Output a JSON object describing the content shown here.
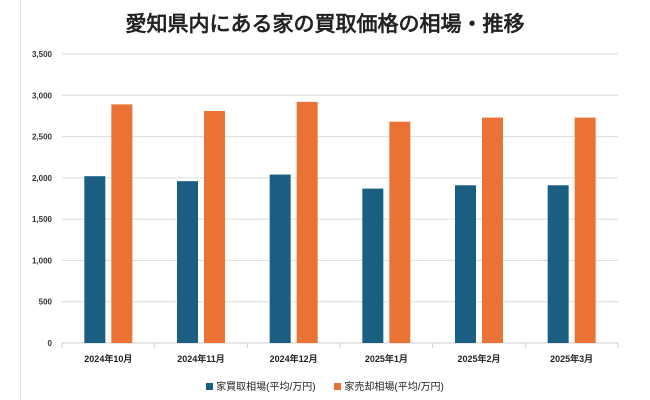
{
  "chart_data": {
    "type": "bar",
    "title": "愛知県内にある家の買取価格の相場・推移",
    "categories": [
      "2024年10月",
      "2024年11月",
      "2024年12月",
      "2025年1月",
      "2025年2月",
      "2025年3月"
    ],
    "series": [
      {
        "name": "家買取相場(平均/万円)",
        "color": "#1a5f82",
        "values": [
          2020,
          1960,
          2040,
          1870,
          1910,
          1910
        ]
      },
      {
        "name": "家売却相場(平均/万円)",
        "color": "#ea7234",
        "values": [
          2890,
          2810,
          2920,
          2680,
          2730,
          2730
        ]
      }
    ],
    "ylim": [
      0,
      3500
    ],
    "yticks": [
      0,
      500,
      1000,
      1500,
      2000,
      2500,
      3000,
      3500
    ],
    "ytick_labels": [
      "0",
      "500",
      "1,000",
      "1,500",
      "2,000",
      "2,500",
      "3,000",
      "3,500"
    ],
    "grid": true,
    "legend": "bottom"
  }
}
